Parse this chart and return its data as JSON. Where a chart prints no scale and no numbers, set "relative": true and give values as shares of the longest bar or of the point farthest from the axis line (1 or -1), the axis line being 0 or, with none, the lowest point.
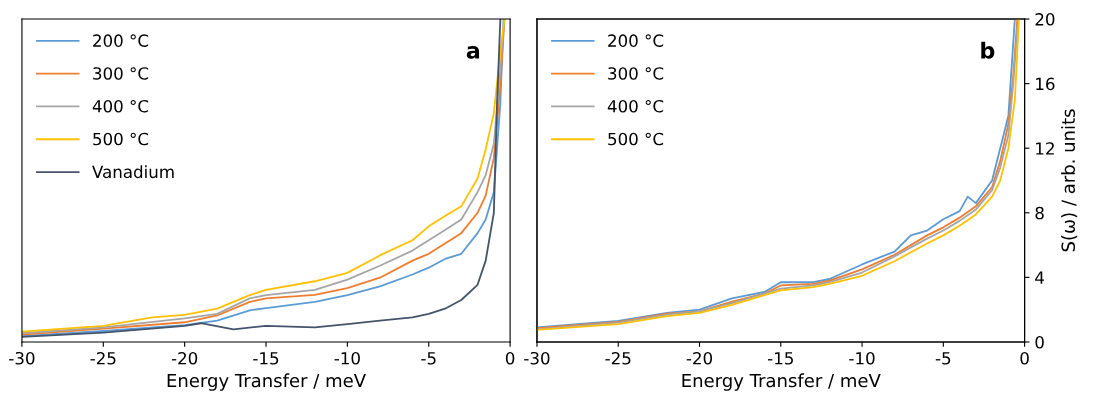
{
  "chart_data": [
    {
      "type": "line",
      "xlabel": "Energy Transfer / meV",
      "annotations": [
        "a"
      ],
      "relative": true,
      "xlim": [
        -30,
        0
      ],
      "xticks": [
        -30,
        -25,
        -20,
        -15,
        -10,
        -5,
        0
      ],
      "tick_labels": "x",
      "grid": false,
      "legend": "top left",
      "marker": "none",
      "line_style": "solid",
      "series": [
        {
          "name": "200 °C",
          "color": "#5b9bd5",
          "x": [
            -30,
            -25,
            -20,
            -18,
            -16,
            -15,
            -12,
            -10,
            -8,
            -6,
            -5,
            -4,
            -3,
            -2,
            -1.5,
            -1,
            -0.6,
            -0.4
          ],
          "values": [
            0.018,
            0.034,
            0.052,
            0.066,
            0.098,
            0.105,
            0.124,
            0.145,
            0.172,
            0.209,
            0.23,
            0.257,
            0.273,
            0.337,
            0.379,
            0.464,
            0.74,
            1.0
          ]
        },
        {
          "name": "300 °C",
          "color": "#ed7d31",
          "x": [
            -30,
            -25,
            -20,
            -18,
            -16,
            -15,
            -12,
            -10,
            -8,
            -6,
            -5,
            -4,
            -3,
            -2,
            -1.5,
            -1,
            -0.6,
            -0.35
          ],
          "values": [
            0.023,
            0.041,
            0.061,
            0.082,
            0.124,
            0.135,
            0.146,
            0.167,
            0.199,
            0.252,
            0.273,
            0.305,
            0.337,
            0.4,
            0.453,
            0.57,
            0.793,
            1.0
          ]
        },
        {
          "name": "400 °C",
          "color": "#a5a5a5",
          "x": [
            -30,
            -25,
            -20,
            -18,
            -16,
            -15,
            -12,
            -10,
            -8,
            -6,
            -5,
            -4,
            -3,
            -2,
            -1.5,
            -1,
            -0.6,
            -0.35
          ],
          "values": [
            0.027,
            0.045,
            0.073,
            0.087,
            0.135,
            0.145,
            0.161,
            0.193,
            0.236,
            0.283,
            0.315,
            0.347,
            0.379,
            0.464,
            0.517,
            0.613,
            0.846,
            1.0
          ]
        },
        {
          "name": "500 °C",
          "color": "#ffc000",
          "x": [
            -30,
            -25,
            -22,
            -20,
            -18,
            -16,
            -15,
            -12,
            -10,
            -8,
            -6,
            -5,
            -4,
            -3,
            -2,
            -1.5,
            -1,
            -0.6,
            -0.35
          ],
          "values": [
            0.032,
            0.05,
            0.076,
            0.084,
            0.103,
            0.145,
            0.161,
            0.188,
            0.214,
            0.268,
            0.315,
            0.358,
            0.39,
            0.42,
            0.506,
            0.597,
            0.708,
            0.9,
            1.0
          ]
        },
        {
          "name": "Vanadium",
          "color": "#44546a",
          "x": [
            -30,
            -25,
            -20,
            -19,
            -17,
            -15,
            -12,
            -10,
            -8,
            -6,
            -5,
            -4,
            -3,
            -2,
            -1.5,
            -1,
            -0.8,
            -0.6
          ],
          "values": [
            0.016,
            0.029,
            0.05,
            0.058,
            0.039,
            0.05,
            0.045,
            0.055,
            0.066,
            0.076,
            0.087,
            0.103,
            0.13,
            0.177,
            0.252,
            0.4,
            0.74,
            1.0
          ]
        }
      ]
    },
    {
      "type": "line",
      "xlabel": "Energy Transfer / meV",
      "y2label": "S(ω) / arb. units",
      "annotations": [
        "b"
      ],
      "xlim": [
        -30,
        0
      ],
      "xticks": [
        -30,
        -25,
        -20,
        -15,
        -10,
        -5,
        0
      ],
      "y2lim": [
        0,
        20
      ],
      "y2ticks": [
        0,
        4,
        8,
        12,
        16,
        20
      ],
      "grid": false,
      "legend": "top left",
      "marker": "none",
      "line_style": "solid",
      "series": [
        {
          "name": "200 °C",
          "color": "#5b9bd5",
          "axis": "y2",
          "x": [
            -30,
            -25,
            -22,
            -20,
            -18,
            -16,
            -15,
            -13,
            -12,
            -10,
            -8,
            -7,
            -6,
            -5,
            -4,
            -3.5,
            -3,
            -2,
            -1.5,
            -1,
            -0.6
          ],
          "values": [
            0.9,
            1.3,
            1.8,
            2.0,
            2.7,
            3.1,
            3.7,
            3.7,
            3.9,
            4.8,
            5.6,
            6.6,
            6.9,
            7.6,
            8.1,
            9.0,
            8.6,
            10,
            12,
            14,
            20
          ]
        },
        {
          "name": "300 °C",
          "color": "#ed7d31",
          "axis": "y2",
          "x": [
            -30,
            -25,
            -22,
            -20,
            -18,
            -16,
            -15,
            -13,
            -12,
            -10,
            -8,
            -6,
            -5,
            -4,
            -3,
            -2,
            -1.5,
            -1,
            -0.7,
            -0.45
          ],
          "values": [
            0.85,
            1.25,
            1.75,
            1.9,
            2.5,
            3.0,
            3.5,
            3.6,
            3.8,
            4.5,
            5.4,
            6.6,
            7.1,
            7.7,
            8.4,
            9.6,
            11.2,
            13.5,
            16.5,
            20
          ]
        },
        {
          "name": "400 °C",
          "color": "#a5a5a5",
          "axis": "y2",
          "x": [
            -30,
            -25,
            -22,
            -20,
            -18,
            -16,
            -15,
            -13,
            -12,
            -10,
            -8,
            -6,
            -5,
            -4,
            -3,
            -2,
            -1.5,
            -1,
            -0.7,
            -0.4
          ],
          "values": [
            0.8,
            1.2,
            1.7,
            1.9,
            2.4,
            3.0,
            3.3,
            3.5,
            3.7,
            4.3,
            5.3,
            6.4,
            6.9,
            7.5,
            8.2,
            9.4,
            10.8,
            12.8,
            16,
            20
          ]
        },
        {
          "name": "500 °C",
          "color": "#ffc000",
          "axis": "y2",
          "x": [
            -30,
            -25,
            -22,
            -20,
            -18,
            -16,
            -15,
            -13,
            -12,
            -10,
            -8,
            -6,
            -5,
            -4,
            -3,
            -2,
            -1.5,
            -1,
            -0.6,
            -0.35
          ],
          "values": [
            0.75,
            1.1,
            1.6,
            1.8,
            2.3,
            2.9,
            3.2,
            3.4,
            3.6,
            4.1,
            5.0,
            6.1,
            6.6,
            7.2,
            7.9,
            9.0,
            10,
            12,
            15,
            20
          ]
        }
      ]
    }
  ]
}
